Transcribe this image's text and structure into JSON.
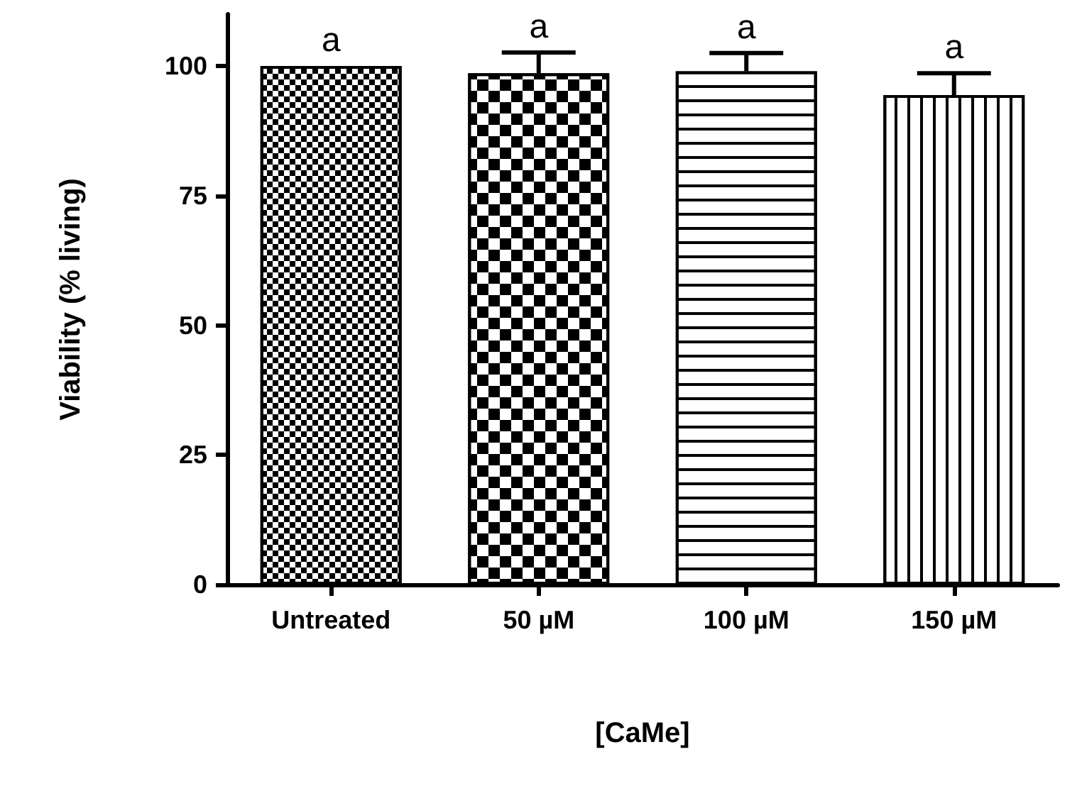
{
  "chart_data": {
    "type": "bar",
    "xlabel": "[CaMe]",
    "ylabel": "Viability (% living)",
    "categories": [
      "Untreated",
      "50 µM",
      "100 µM",
      "150 µM"
    ],
    "values": [
      100,
      98.6,
      99,
      94.4
    ],
    "errors": [
      null,
      4,
      3.5,
      4.2
    ],
    "colors": [
      "#000000",
      "#000000",
      "#000000",
      "#000000"
    ],
    "ylim": [
      0,
      110
    ],
    "yticks": [
      0,
      25,
      50,
      75,
      100
    ],
    "grid": false,
    "annotations": [
      {
        "text": "a",
        "x": "Untreated",
        "y": 100
      },
      {
        "text": "a",
        "x": "50 µM",
        "y": 102.6
      },
      {
        "text": "a",
        "x": "100 µM",
        "y": 102.5
      },
      {
        "text": "a",
        "x": "150 µM",
        "y": 98.6
      }
    ]
  }
}
